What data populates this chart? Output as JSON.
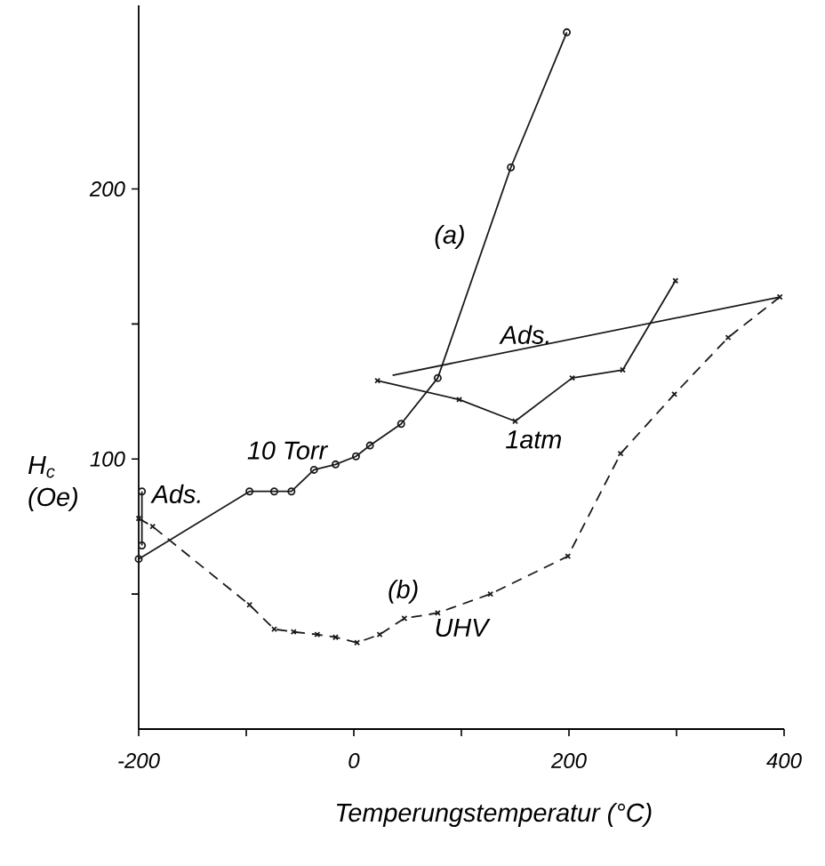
{
  "chart_data": {
    "type": "line",
    "xlabel": "Temperungstemperatur (°C)",
    "ylabel": "H$_{c}$ (Oe)",
    "xlim": [
      -200,
      400
    ],
    "ylim": [
      0,
      268
    ],
    "xticks": [
      -200,
      {
        "value": -100,
        "label": null
      },
      0,
      {
        "value": 100,
        "label": null
      },
      200,
      {
        "value": 300,
        "label": null
      },
      400
    ],
    "yticks": [
      {
        "value": 50,
        "label": null
      },
      100,
      {
        "value": 150,
        "label": null
      },
      200
    ],
    "series": [
      {
        "color": "#1a1a1a",
        "marker": "circle",
        "line_style": "solid",
        "x": [
          -200,
          -97,
          -74,
          -58,
          -37,
          -17,
          2,
          15,
          44,
          78,
          146,
          198
        ],
        "values": [
          63,
          88,
          88,
          88,
          96,
          98,
          101,
          105,
          113,
          130,
          208,
          258
        ]
      },
      {
        "color": "#1a1a1a",
        "marker": "cross",
        "line_style": "solid",
        "x": [
          22,
          98,
          150,
          203,
          250,
          299
        ],
        "values": [
          129,
          122,
          114,
          130,
          133,
          166
        ]
      },
      {
        "color": "#1a1a1a",
        "marker": "cross",
        "line_style": "dashed",
        "x": [
          -200,
          -187,
          -97,
          -74,
          -56,
          -34,
          -17,
          3,
          24,
          47,
          78,
          127,
          199,
          248,
          298,
          348,
          396
        ],
        "values": [
          78,
          75,
          46,
          37,
          36,
          35,
          34,
          32,
          35,
          41,
          43,
          50,
          64,
          102,
          124,
          145,
          160
        ]
      },
      {
        "color": "#1a1a1a",
        "marker": "none",
        "line_style": "solid",
        "x": [
          396,
          36
        ],
        "values": [
          160,
          131
        ]
      },
      {
        "color": "#1a1a1a",
        "marker": "circle",
        "line_style": "solid",
        "x": [
          -197,
          -197
        ],
        "values": [
          88,
          68
        ]
      }
    ],
    "annotations": [
      "(a)",
      "10 Torr",
      "Ads.",
      "1atm",
      "Ads.",
      "(b)",
      "UHV"
    ]
  }
}
